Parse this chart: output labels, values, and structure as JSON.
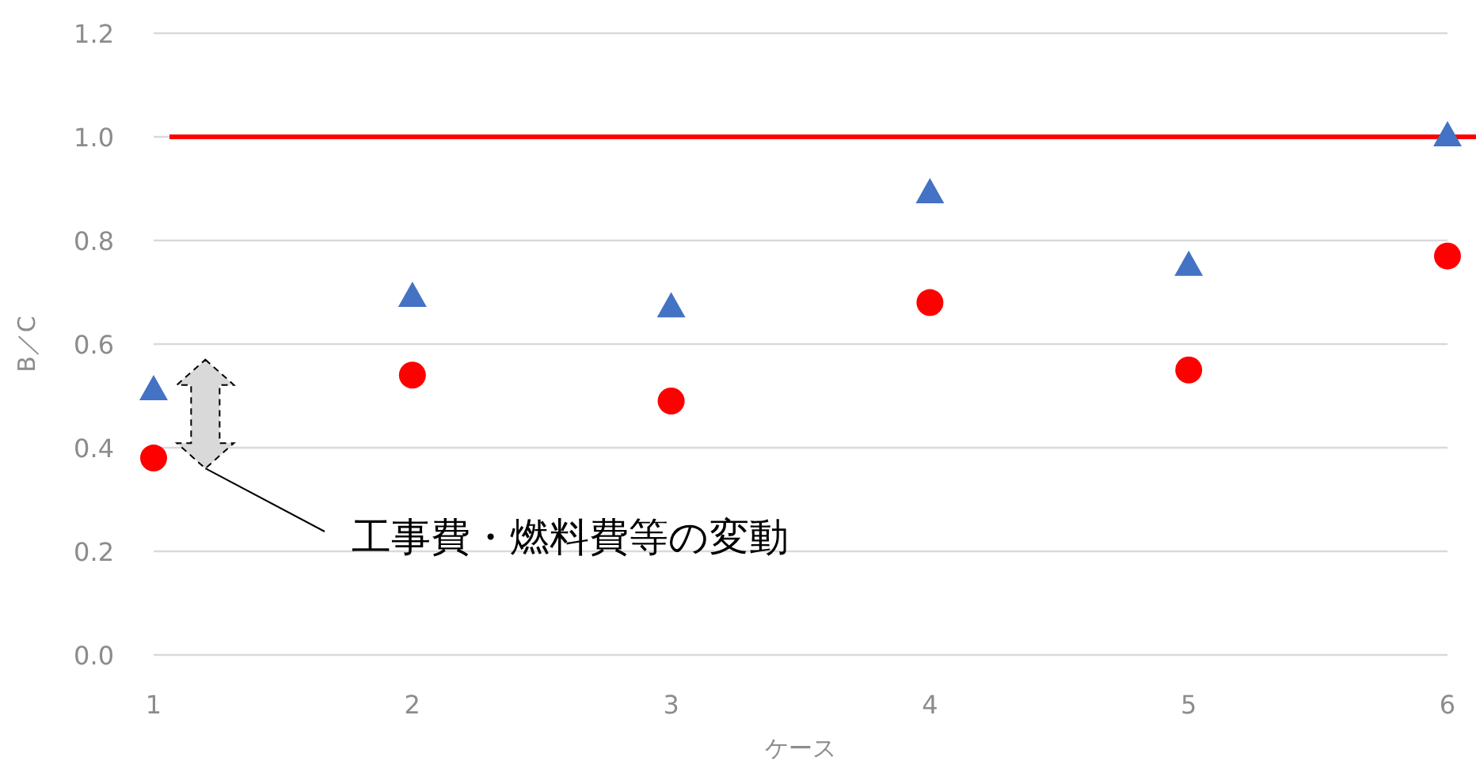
{
  "chart_data": {
    "type": "scatter",
    "xlabel": "ケース",
    "ylabel": "B／C",
    "x": [
      1,
      2,
      3,
      4,
      5,
      6
    ],
    "xlim": [
      1,
      6
    ],
    "xticks": [
      1,
      2,
      3,
      4,
      5,
      6
    ],
    "ylim": [
      0,
      1.2
    ],
    "yticks": [
      {
        "value": 0,
        "label": "0.0"
      },
      0.2,
      0.4,
      0.6,
      0.8,
      {
        "value": 1,
        "label": "1.0"
      },
      1.2
    ],
    "grid": "y",
    "series": [
      {
        "color": "#4472c4",
        "marker": "triangle",
        "values": [
          0.51,
          0.69,
          0.67,
          0.89,
          0.75,
          1.0
        ]
      },
      {
        "color": "#ff0000",
        "marker": "circle",
        "values": [
          0.38,
          0.54,
          0.49,
          0.68,
          0.55,
          0.77
        ]
      }
    ],
    "ref_lines": [
      {
        "axis": "y",
        "value": 1,
        "color": "#ff0000",
        "line_style": "solid"
      }
    ],
    "annotations": [
      "工事費・燃料費等の変動"
    ]
  }
}
